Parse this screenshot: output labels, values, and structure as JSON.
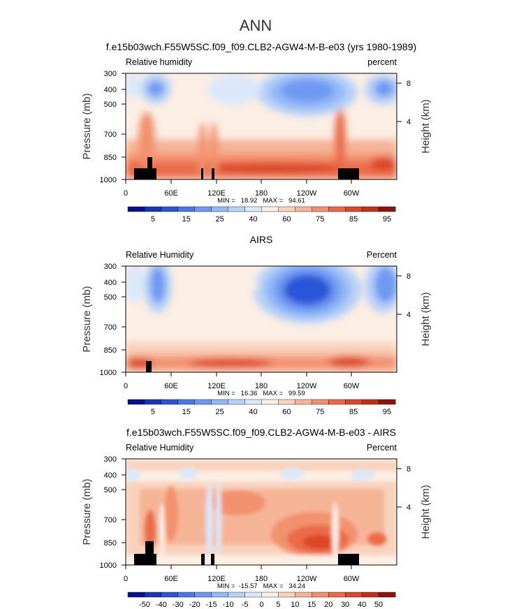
{
  "figure_title": "ANN",
  "chart_data": [
    {
      "type": "heatmap",
      "title": "f.e15b03wch.F55W5SC.f09_f09.CLB2-AGW4-M-B-e03 (yrs 1980-1989)",
      "variable_label": "Relative humidity",
      "units_label": "percent",
      "ylabel": "Pressure (mb)",
      "ylabel_right": "Height (km)",
      "x_ticks": [
        "0",
        "60E",
        "120E",
        "180",
        "120W",
        "60W"
      ],
      "y_ticks": [
        "300",
        "400",
        "500",
        "700",
        "850",
        "1000"
      ],
      "y_right_ticks": [
        "8",
        "4"
      ],
      "stats": "MIN =   18.92   MAX =   94.61",
      "colorbar_labels": [
        "5",
        "15",
        "25",
        "40",
        "60",
        "75",
        "85",
        "95"
      ],
      "colorbar_colors": [
        "#08108c",
        "#1a34b8",
        "#2a55d8",
        "#4a78ea",
        "#6e98f2",
        "#93b8f6",
        "#b8d2f8",
        "#dbe8fa",
        "#fbeee4",
        "#f9d2bc",
        "#f6b496",
        "#f2916e",
        "#ea6a48",
        "#dd4628",
        "#c22e16",
        "#8e1308"
      ],
      "xlim": [
        0,
        360
      ],
      "ylim": [
        1000,
        300
      ],
      "min": 18.92,
      "max": 94.61
    },
    {
      "type": "heatmap",
      "title": "AIRS",
      "variable_label": "Relative Humidity",
      "units_label": "Percent",
      "ylabel": "Pressure (mb)",
      "ylabel_right": "Height (km)",
      "x_ticks": [
        "0",
        "60E",
        "120E",
        "180",
        "120W",
        "60W"
      ],
      "y_ticks": [
        "300",
        "400",
        "500",
        "700",
        "850",
        "1000"
      ],
      "y_right_ticks": [
        "8",
        "4"
      ],
      "stats": "MIN =   16.36   MAX =   99.59",
      "colorbar_labels": [
        "5",
        "15",
        "25",
        "40",
        "60",
        "75",
        "85",
        "95"
      ],
      "colorbar_colors": [
        "#08108c",
        "#1a34b8",
        "#2a55d8",
        "#4a78ea",
        "#6e98f2",
        "#93b8f6",
        "#b8d2f8",
        "#dbe8fa",
        "#fbeee4",
        "#f9d2bc",
        "#f6b496",
        "#f2916e",
        "#ea6a48",
        "#dd4628",
        "#c22e16",
        "#8e1308"
      ],
      "xlim": [
        0,
        360
      ],
      "ylim": [
        1000,
        300
      ],
      "min": 16.36,
      "max": 99.59
    },
    {
      "type": "heatmap",
      "title": "f.e15b03wch.F55W5SC.f09_f09.CLB2-AGW4-M-B-e03 - AIRS",
      "variable_label": "Relative Humidity",
      "units_label": "Percent",
      "ylabel": "Pressure (mb)",
      "ylabel_right": "Height (km)",
      "x_ticks": [
        "0",
        "60E",
        "120E",
        "180",
        "120W",
        "60W"
      ],
      "y_ticks": [
        "300",
        "400",
        "500",
        "700",
        "850",
        "1000"
      ],
      "y_right_ticks": [
        "8",
        "4"
      ],
      "stats": "MIN =  -15.57   MAX =   34.24",
      "colorbar_labels": [
        "-50",
        "-40",
        "-30",
        "-20",
        "-15",
        "-10",
        "-5",
        "0",
        "5",
        "10",
        "15",
        "20",
        "30",
        "40",
        "50"
      ],
      "colorbar_colors": [
        "#08108c",
        "#1a34b8",
        "#2a55d8",
        "#4a78ea",
        "#6e98f2",
        "#93b8f6",
        "#b8d2f8",
        "#dbe8fa",
        "#fbeee4",
        "#f9d2bc",
        "#f6b496",
        "#f2916e",
        "#ea6a48",
        "#dd4628",
        "#c22e16",
        "#8e1308"
      ],
      "xlim": [
        0,
        360
      ],
      "ylim": [
        1000,
        300
      ],
      "min": -15.57,
      "max": 34.24
    }
  ]
}
